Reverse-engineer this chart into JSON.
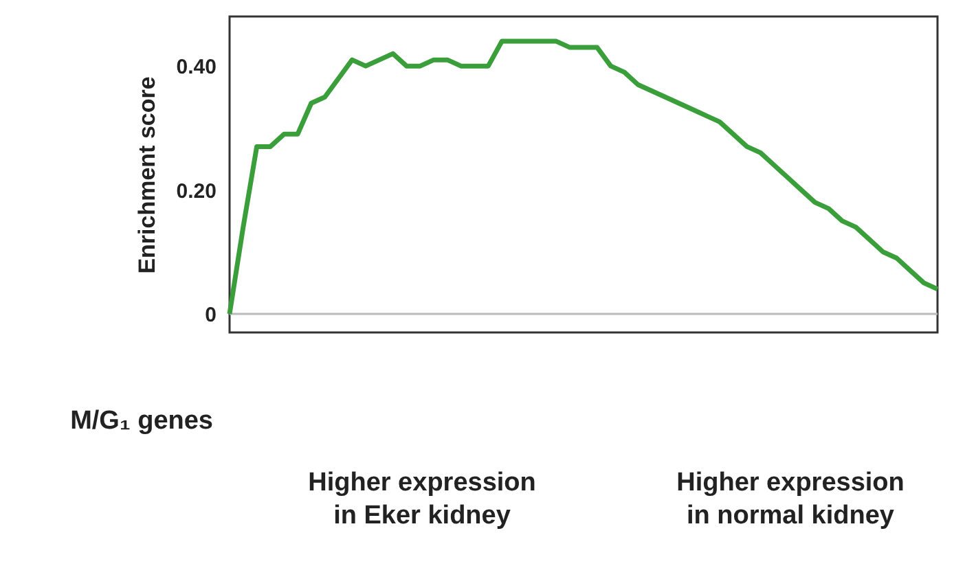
{
  "chart_data": {
    "type": "line",
    "ylabel": "Enrichment score",
    "categories": [
      null,
      null,
      null,
      null,
      null,
      null,
      null,
      null,
      null,
      null,
      null,
      null,
      null,
      null,
      null,
      null,
      null,
      null,
      null,
      null,
      null,
      null,
      null,
      null,
      null,
      null,
      null,
      null,
      null,
      null,
      null,
      null,
      null,
      null,
      null,
      null,
      null,
      null,
      null,
      null,
      null,
      null,
      null,
      null,
      null,
      null,
      null,
      null,
      null,
      null,
      null,
      null,
      null
    ],
    "series": [
      {
        "color": "#3a9e3a",
        "values": [
          0.0,
          0.14,
          0.27,
          0.27,
          0.29,
          0.29,
          0.34,
          0.35,
          0.38,
          0.41,
          0.4,
          0.41,
          0.42,
          0.4,
          0.4,
          0.41,
          0.41,
          0.4,
          0.4,
          0.4,
          0.44,
          0.44,
          0.44,
          0.44,
          0.44,
          0.43,
          0.43,
          0.43,
          0.4,
          0.39,
          0.37,
          0.36,
          0.35,
          0.34,
          0.33,
          0.32,
          0.31,
          0.29,
          0.27,
          0.26,
          0.24,
          0.22,
          0.2,
          0.18,
          0.17,
          0.15,
          0.14,
          0.12,
          0.1,
          0.09,
          0.07,
          0.05,
          0.04
        ]
      }
    ],
    "ylim": [
      -0.03,
      0.48
    ],
    "yticks": [
      0,
      {
        "value": 0.2,
        "label": "0.20"
      },
      {
        "value": 0.4,
        "label": "0.40"
      }
    ],
    "ref_lines": [
      {
        "axis": "y",
        "value": 0,
        "color": "#bbbbbb"
      }
    ],
    "grid": false,
    "marker": "none",
    "line_style": "solid",
    "tick_labels": "y",
    "annotations": [
      "M/G₁ genes",
      "Higher expression\nin Eker kidney",
      "Higher expression\nin normal kidney"
    ]
  }
}
